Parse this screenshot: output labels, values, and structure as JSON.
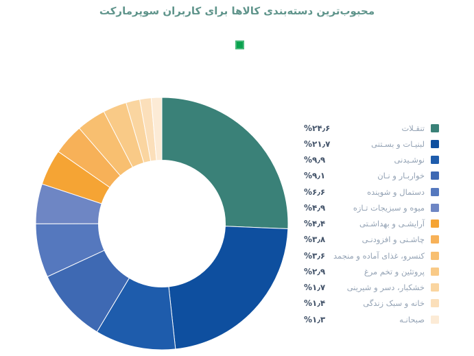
{
  "title": "محبوب‌ترین دسته‌بندی کالاها برای کاربران سوپرمارکت",
  "colors": {
    "background": "#FFFFFF",
    "title_text": "#5F948B",
    "percent_text": "#44546A",
    "label_text": "#93A2B4",
    "marker_green": "#0AA24E",
    "slice_border": "#FFFFFF"
  },
  "chart_data": {
    "type": "pie",
    "subtype": "donut",
    "title": "محبوب‌ترین دسته‌بندی کالاها برای کاربران سوپرمارکت",
    "start_angle_deg": 0,
    "direction": "clockwise",
    "inner_radius_ratio": 0.5,
    "legend_position": "right",
    "items": [
      {
        "label": "تنقـلات",
        "value": 24.6,
        "display": "%۲۴٫۶",
        "color": "#3A8178"
      },
      {
        "label": "لبنیـات و بسـتنی",
        "value": 21.7,
        "display": "%۲۱٫۷",
        "color": "#0E4F9F"
      },
      {
        "label": "نوشـیدنی",
        "value": 9.9,
        "display": "%۹٫۹",
        "color": "#1E5CAC"
      },
      {
        "label": "خواربـار و نـان",
        "value": 9.1,
        "display": "%۹٫۱",
        "color": "#3E69B3"
      },
      {
        "label": "دستمال و شوینده",
        "value": 6.6,
        "display": "%۶٫۶",
        "color": "#5578BE"
      },
      {
        "label": "میوه و سبزیجات تـازه",
        "value": 4.9,
        "display": "%۴٫۹",
        "color": "#6E86C4"
      },
      {
        "label": "آرایشـی و بهداشـتی",
        "value": 4.4,
        "display": "%۴٫۴",
        "color": "#F5A434"
      },
      {
        "label": "چاشـنی و افزودنـی",
        "value": 3.8,
        "display": "%۳٫۸",
        "color": "#F7B158"
      },
      {
        "label": "کنسرو، غذای آماده و منجمد",
        "value": 3.6,
        "display": "%۳٫۶",
        "color": "#F8BF70"
      },
      {
        "label": "پروتئین و تخم مرغ",
        "value": 2.9,
        "display": "%۲٫۹",
        "color": "#F9CA87"
      },
      {
        "label": "خشکبار، دسر و شیرینی",
        "value": 1.7,
        "display": "%۱٫۷",
        "color": "#FAD5A0"
      },
      {
        "label": "خانه و سبک زندگی",
        "value": 1.4,
        "display": "%۱٫۴",
        "color": "#FBDFBA"
      },
      {
        "label": "صبحانـه",
        "value": 1.3,
        "display": "%۱٫۳",
        "color": "#FCEBD6"
      }
    ]
  }
}
